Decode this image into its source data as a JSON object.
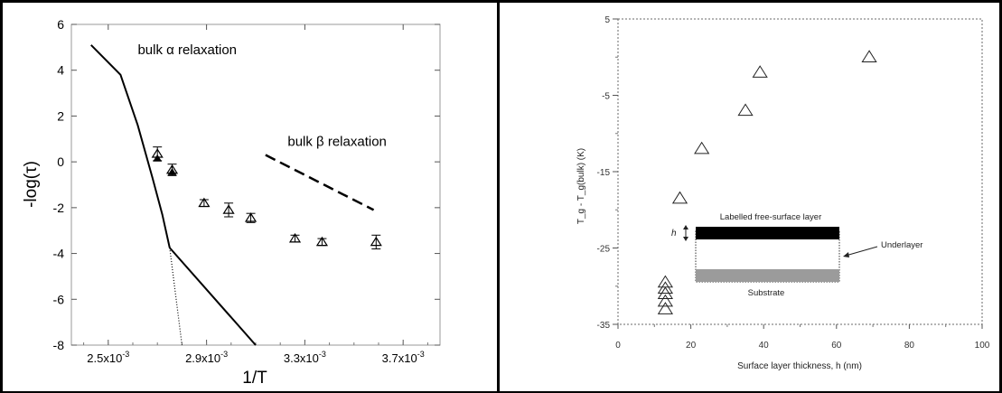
{
  "chart_data": [
    {
      "type": "line",
      "xlabel": "1/T",
      "ylabel": "-log(τ)",
      "xlim": [
        0.00235,
        0.00385
      ],
      "ylim": [
        -8,
        6
      ],
      "xticks": [
        0.0025,
        0.0029,
        0.0033,
        0.0037
      ],
      "xtick_labels": [
        "2.5x10",
        "2.9x10",
        "3.3x10",
        "3.7x10"
      ],
      "xtick_exponent": "-3",
      "yticks": [
        6,
        4,
        2,
        0,
        -2,
        -4,
        -6,
        -8
      ],
      "ytick_labels": [
        "6",
        "4",
        "2",
        "0",
        "-2",
        "-4",
        "-6",
        "-8"
      ],
      "grid": false,
      "annotations": [
        {
          "text": "bulk α relaxation",
          "x": 0.00262,
          "y": 4.7
        },
        {
          "text": "bulk β relaxation",
          "x": 0.00323,
          "y": 0.7
        }
      ],
      "series": [
        {
          "style": "solid",
          "x": [
            0.00243,
            0.00255,
            0.00262,
            0.00268,
            0.00272,
            0.00275
          ],
          "y": [
            5.1,
            3.8,
            1.6,
            -0.7,
            -2.3,
            -3.75
          ]
        },
        {
          "style": "solid",
          "x": [
            0.00275,
            0.0031
          ],
          "y": [
            -3.75,
            -8.0
          ]
        },
        {
          "style": "dotted",
          "x": [
            0.00275,
            0.0028
          ],
          "y": [
            -3.75,
            -8.0
          ]
        },
        {
          "style": "dashed",
          "x": [
            0.00314,
            0.00358
          ],
          "y": [
            0.3,
            -2.1
          ]
        },
        {
          "style": "triangle-up",
          "x": [
            0.0027,
            0.00276,
            0.00289,
            0.00299,
            0.00308,
            0.00326,
            0.00337,
            0.00359
          ],
          "y": [
            0.35,
            -0.35,
            -1.8,
            -2.1,
            -2.45,
            -3.35,
            -3.5,
            -3.5
          ],
          "yerr": [
            0.3,
            0.25,
            0.15,
            0.3,
            0.2,
            0.15,
            0.15,
            0.3
          ]
        },
        {
          "style": "filled-triangle",
          "x": [
            0.0027,
            0.00276
          ],
          "y": [
            0.15,
            -0.45
          ]
        }
      ]
    },
    {
      "type": "scatter",
      "xlabel": "Surface layer thickness, h (nm)",
      "ylabel": "T_g - T_g(bulk) (K)",
      "xlim": [
        0,
        100
      ],
      "ylim": [
        -35,
        5
      ],
      "xticks": [
        0,
        20,
        40,
        60,
        80,
        100
      ],
      "yticks": [
        5,
        -5,
        -15,
        -25,
        -35
      ],
      "grid": false,
      "series": [
        {
          "style": "triangle-up",
          "x": [
            13,
            13,
            13,
            13,
            13,
            17,
            23,
            35,
            39,
            69
          ],
          "y": [
            -33,
            -32,
            -31,
            -30.3,
            -29.5,
            -18.5,
            -12,
            -7,
            -2,
            0
          ]
        }
      ],
      "inset": {
        "top_label": "Labelled free-surface layer",
        "h_label": "h",
        "side_label": "Underlayer",
        "bottom_label": "Substrate"
      }
    }
  ]
}
